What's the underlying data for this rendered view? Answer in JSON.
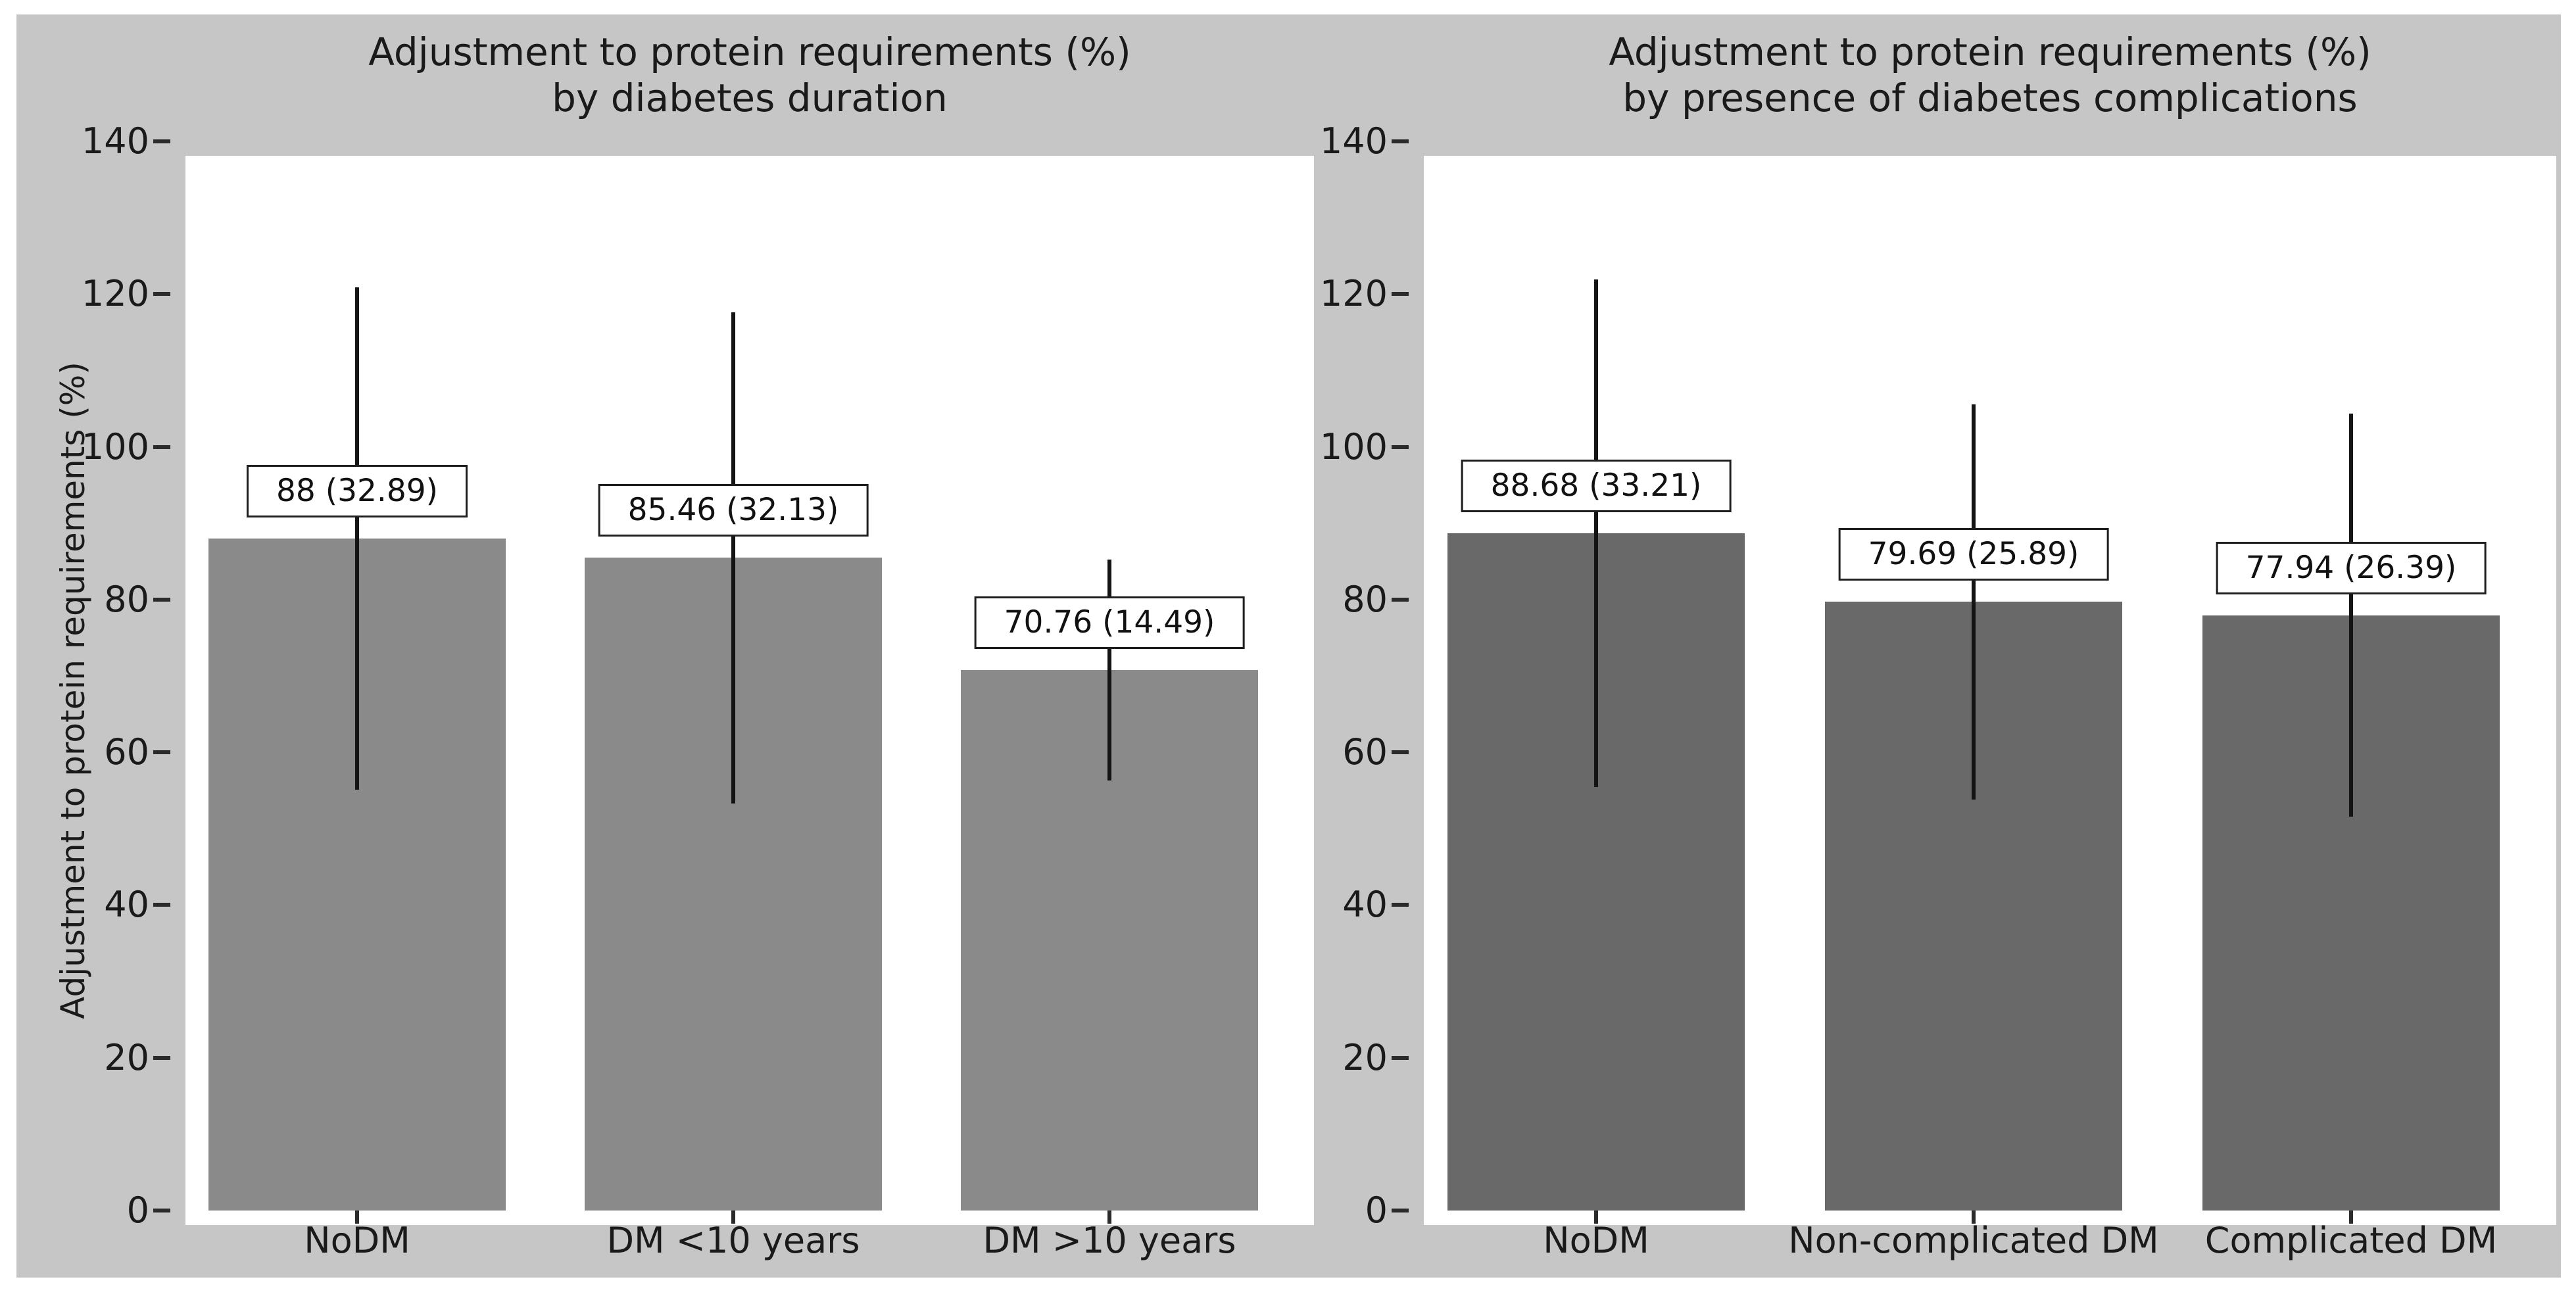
{
  "figure": {
    "background": "#c6c6c6",
    "plot_background": "#ffffff",
    "text_color": "#1a1a1a",
    "error_bar_color": "#141414",
    "annotation_box": {
      "background": "#ffffff",
      "border": "#1e1e1e"
    }
  },
  "chart_data": [
    {
      "type": "bar",
      "title_line1": "Adjustment to protein requirements (%)",
      "title_line2": "by diabetes duration",
      "title": "Adjustment to protein requirements (%) by diabetes duration",
      "ylabel": "Adjustment to protein requirements (%)",
      "xlabel": "",
      "categories": [
        "NoDM",
        "DM <10 years",
        "DM >10 years"
      ],
      "values": [
        88,
        85.46,
        70.76
      ],
      "errors": [
        32.89,
        32.13,
        14.49
      ],
      "bar_labels": [
        "88 (32.89)",
        "85.46 (32.13)",
        "70.76 (14.49)"
      ],
      "ylim": [
        0,
        140
      ],
      "yticks": [
        0,
        20,
        40,
        60,
        80,
        100,
        120,
        140
      ],
      "bar_color": "#8a8a8a",
      "grid": false,
      "legend": null
    },
    {
      "type": "bar",
      "title_line1": "Adjustment to protein requirements (%)",
      "title_line2": "by presence of diabetes complications",
      "title": "Adjustment to protein requirements (%) by presence of diabetes complications",
      "ylabel": "",
      "xlabel": "",
      "categories": [
        "NoDM",
        "Non-complicated DM",
        "Complicated DM"
      ],
      "values": [
        88.68,
        79.69,
        77.94
      ],
      "errors": [
        33.21,
        25.89,
        26.39
      ],
      "bar_labels": [
        "88.68 (33.21)",
        "79.69 (25.89)",
        "77.94 (26.39)"
      ],
      "ylim": [
        0,
        140
      ],
      "yticks": [
        0,
        20,
        40,
        60,
        80,
        100,
        120,
        140
      ],
      "bar_color": "#696969",
      "grid": false,
      "legend": null
    }
  ]
}
